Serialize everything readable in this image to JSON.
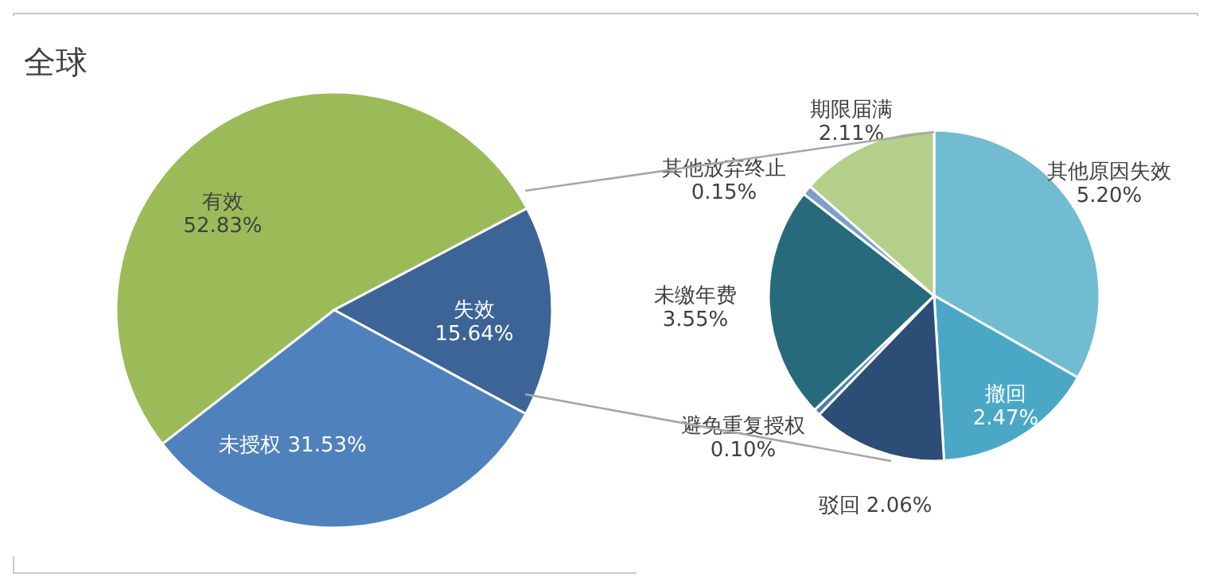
{
  "chart_data": [
    {
      "type": "pie",
      "title": "全球",
      "categories": [
        "有效",
        "失效",
        "未授权"
      ],
      "values": [
        52.83,
        15.64,
        31.53
      ],
      "colors": [
        "#9bbb59",
        "#3c6497",
        "#4f81bd"
      ],
      "value_labels": [
        "52.83%",
        "15.64%",
        "31.53%"
      ]
    },
    {
      "type": "pie",
      "categories": [
        "其他原因失效",
        "撤回",
        "驳回",
        "避免重复授权",
        "未缴年费",
        "其他放弃终止",
        "期限届满"
      ],
      "values": [
        5.2,
        2.47,
        2.06,
        0.1,
        3.55,
        0.15,
        2.11
      ],
      "colors": [
        "#72bcd1",
        "#4aa8c6",
        "#2c4d75",
        "#4e7fa8",
        "#276a7c",
        "#7d9fc9",
        "#b3cf8a"
      ],
      "value_labels": [
        "5.20%",
        "2.47%",
        "2.06%",
        "0.10%",
        "3.55%",
        "0.15%",
        "2.11%"
      ]
    }
  ]
}
